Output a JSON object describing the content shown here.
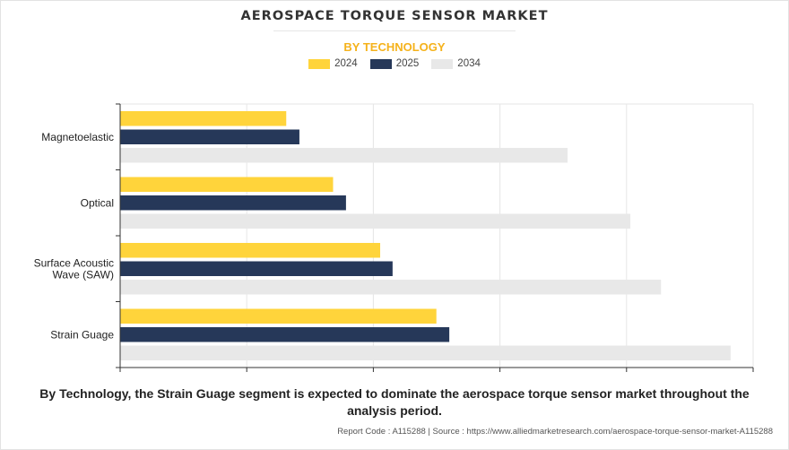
{
  "title": "AEROSPACE TORQUE SENSOR MARKET",
  "subtitle": "BY TECHNOLOGY",
  "caption": "By Technology, the Strain Guage segment is expected to dominate the aerospace torque sensor market throughout the analysis period.",
  "footer": "Report Code : A115288  |  Source : https://www.alliedmarketresearch.com/aerospace-torque-sensor-market-A115288",
  "chart_data": {
    "type": "bar",
    "orientation": "horizontal",
    "categories": [
      "Magnetoelastic",
      "Optical",
      "Surface Acoustic Wave (SAW)",
      "Strain Guage"
    ],
    "category_lines": [
      [
        "Magnetoelastic"
      ],
      [
        "Optical"
      ],
      [
        "Surface Acoustic",
        "Wave (SAW)"
      ],
      [
        "Strain Guage"
      ]
    ],
    "series": [
      {
        "name": "2024",
        "color": "#ffd43b",
        "values": [
          65.6,
          84.1,
          102.7,
          124.9
        ]
      },
      {
        "name": "2025",
        "color": "#263859",
        "values": [
          70.8,
          89.2,
          107.6,
          130.0
        ]
      },
      {
        "name": "2034",
        "color": "#e8e8e8",
        "values": [
          176.7,
          201.5,
          213.6,
          241.1
        ]
      }
    ],
    "xlim": [
      0,
      250
    ],
    "x_ticks": [
      0,
      50,
      100,
      150,
      200,
      250
    ],
    "tick_labels_shown": false,
    "grid": true,
    "legend_position": "top-center",
    "xlabel": "",
    "ylabel": ""
  }
}
